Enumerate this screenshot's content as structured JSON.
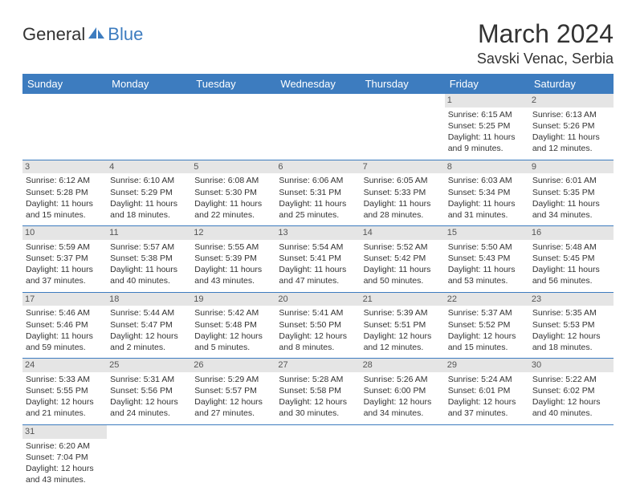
{
  "logo": {
    "general": "General",
    "blue": "Blue"
  },
  "title": "March 2024",
  "location": "Savski Venac, Serbia",
  "dayHeaders": [
    "Sunday",
    "Monday",
    "Tuesday",
    "Wednesday",
    "Thursday",
    "Friday",
    "Saturday"
  ],
  "colors": {
    "headerBg": "#3d7cbf",
    "dayNumBg": "#e5e5e5",
    "border": "#3d7cbf",
    "text": "#333"
  },
  "grid": [
    [
      null,
      null,
      null,
      null,
      null,
      {
        "n": "1",
        "sunrise": "6:15 AM",
        "sunset": "5:25 PM",
        "daylight": "11 hours and 9 minutes."
      },
      {
        "n": "2",
        "sunrise": "6:13 AM",
        "sunset": "5:26 PM",
        "daylight": "11 hours and 12 minutes."
      }
    ],
    [
      {
        "n": "3",
        "sunrise": "6:12 AM",
        "sunset": "5:28 PM",
        "daylight": "11 hours and 15 minutes."
      },
      {
        "n": "4",
        "sunrise": "6:10 AM",
        "sunset": "5:29 PM",
        "daylight": "11 hours and 18 minutes."
      },
      {
        "n": "5",
        "sunrise": "6:08 AM",
        "sunset": "5:30 PM",
        "daylight": "11 hours and 22 minutes."
      },
      {
        "n": "6",
        "sunrise": "6:06 AM",
        "sunset": "5:31 PM",
        "daylight": "11 hours and 25 minutes."
      },
      {
        "n": "7",
        "sunrise": "6:05 AM",
        "sunset": "5:33 PM",
        "daylight": "11 hours and 28 minutes."
      },
      {
        "n": "8",
        "sunrise": "6:03 AM",
        "sunset": "5:34 PM",
        "daylight": "11 hours and 31 minutes."
      },
      {
        "n": "9",
        "sunrise": "6:01 AM",
        "sunset": "5:35 PM",
        "daylight": "11 hours and 34 minutes."
      }
    ],
    [
      {
        "n": "10",
        "sunrise": "5:59 AM",
        "sunset": "5:37 PM",
        "daylight": "11 hours and 37 minutes."
      },
      {
        "n": "11",
        "sunrise": "5:57 AM",
        "sunset": "5:38 PM",
        "daylight": "11 hours and 40 minutes."
      },
      {
        "n": "12",
        "sunrise": "5:55 AM",
        "sunset": "5:39 PM",
        "daylight": "11 hours and 43 minutes."
      },
      {
        "n": "13",
        "sunrise": "5:54 AM",
        "sunset": "5:41 PM",
        "daylight": "11 hours and 47 minutes."
      },
      {
        "n": "14",
        "sunrise": "5:52 AM",
        "sunset": "5:42 PM",
        "daylight": "11 hours and 50 minutes."
      },
      {
        "n": "15",
        "sunrise": "5:50 AM",
        "sunset": "5:43 PM",
        "daylight": "11 hours and 53 minutes."
      },
      {
        "n": "16",
        "sunrise": "5:48 AM",
        "sunset": "5:45 PM",
        "daylight": "11 hours and 56 minutes."
      }
    ],
    [
      {
        "n": "17",
        "sunrise": "5:46 AM",
        "sunset": "5:46 PM",
        "daylight": "11 hours and 59 minutes."
      },
      {
        "n": "18",
        "sunrise": "5:44 AM",
        "sunset": "5:47 PM",
        "daylight": "12 hours and 2 minutes."
      },
      {
        "n": "19",
        "sunrise": "5:42 AM",
        "sunset": "5:48 PM",
        "daylight": "12 hours and 5 minutes."
      },
      {
        "n": "20",
        "sunrise": "5:41 AM",
        "sunset": "5:50 PM",
        "daylight": "12 hours and 8 minutes."
      },
      {
        "n": "21",
        "sunrise": "5:39 AM",
        "sunset": "5:51 PM",
        "daylight": "12 hours and 12 minutes."
      },
      {
        "n": "22",
        "sunrise": "5:37 AM",
        "sunset": "5:52 PM",
        "daylight": "12 hours and 15 minutes."
      },
      {
        "n": "23",
        "sunrise": "5:35 AM",
        "sunset": "5:53 PM",
        "daylight": "12 hours and 18 minutes."
      }
    ],
    [
      {
        "n": "24",
        "sunrise": "5:33 AM",
        "sunset": "5:55 PM",
        "daylight": "12 hours and 21 minutes."
      },
      {
        "n": "25",
        "sunrise": "5:31 AM",
        "sunset": "5:56 PM",
        "daylight": "12 hours and 24 minutes."
      },
      {
        "n": "26",
        "sunrise": "5:29 AM",
        "sunset": "5:57 PM",
        "daylight": "12 hours and 27 minutes."
      },
      {
        "n": "27",
        "sunrise": "5:28 AM",
        "sunset": "5:58 PM",
        "daylight": "12 hours and 30 minutes."
      },
      {
        "n": "28",
        "sunrise": "5:26 AM",
        "sunset": "6:00 PM",
        "daylight": "12 hours and 34 minutes."
      },
      {
        "n": "29",
        "sunrise": "5:24 AM",
        "sunset": "6:01 PM",
        "daylight": "12 hours and 37 minutes."
      },
      {
        "n": "30",
        "sunrise": "5:22 AM",
        "sunset": "6:02 PM",
        "daylight": "12 hours and 40 minutes."
      }
    ],
    [
      {
        "n": "31",
        "sunrise": "6:20 AM",
        "sunset": "7:04 PM",
        "daylight": "12 hours and 43 minutes."
      },
      null,
      null,
      null,
      null,
      null,
      null
    ]
  ],
  "labels": {
    "sunrise": "Sunrise: ",
    "sunset": "Sunset: ",
    "daylight": "Daylight: "
  }
}
